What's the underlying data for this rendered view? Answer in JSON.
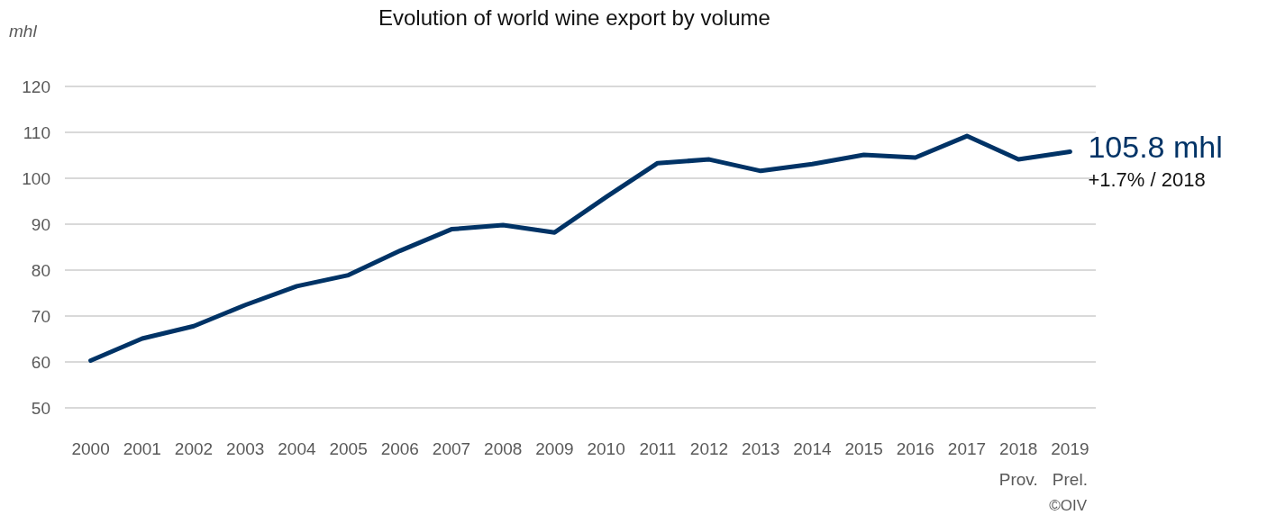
{
  "chart_data": {
    "type": "line",
    "title": "Evolution of world wine export by volume",
    "ylabel": "mhl",
    "categories": [
      "2000",
      "2001",
      "2002",
      "2003",
      "2004",
      "2005",
      "2006",
      "2007",
      "2008",
      "2009",
      "2010",
      "2011",
      "2012",
      "2013",
      "2014",
      "2015",
      "2016",
      "2017",
      "2018\nProv.",
      "2019\nPrel."
    ],
    "series": [
      {
        "color": "#003366",
        "values": [
          60.3,
          65.1,
          67.8,
          72.4,
          76.5,
          78.9,
          84.2,
          88.9,
          89.8,
          88.2,
          95.9,
          103.3,
          104.1,
          101.6,
          103.1,
          105.1,
          104.5,
          109.2,
          104.1,
          105.8
        ]
      }
    ],
    "ylim": [
      50,
      120
    ],
    "yticks": [
      50,
      60,
      70,
      80,
      90,
      100,
      110,
      120
    ],
    "grid": "y",
    "marker": "none",
    "line_style": "solid",
    "annotations": [
      {
        "text": "105.8 mhl",
        "x": "2019\nPrel.",
        "y": 105.8
      },
      {
        "text": "+1.7% / 2018",
        "x": "2019\nPrel.",
        "y": 105.8
      },
      "©OIV"
    ]
  }
}
